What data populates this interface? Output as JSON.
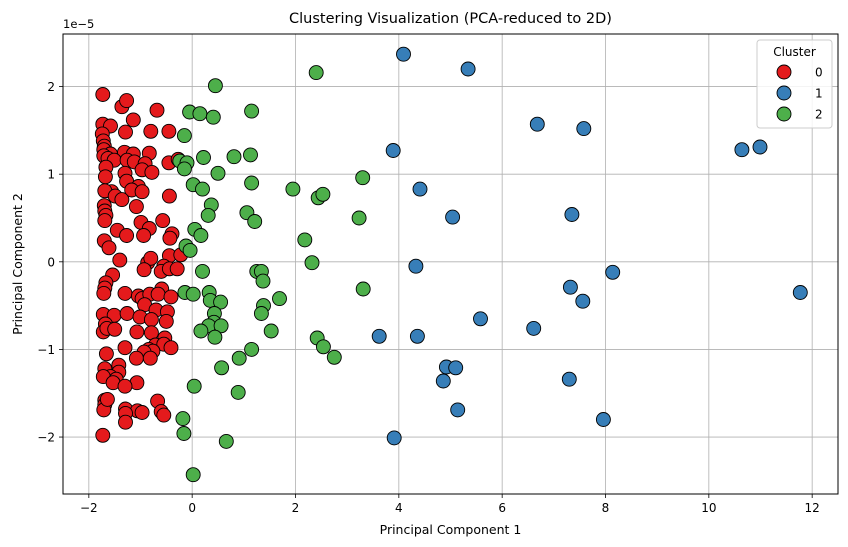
{
  "chart_data": {
    "type": "scatter",
    "title": "Clustering Visualization (PCA-reduced to 2D)",
    "xlabel": "Principal Component 1",
    "ylabel": "Principal Component 2",
    "y_offset_label": "1e−5",
    "y_scale_exponent": -5,
    "xlim": [
      -2.5,
      12.5
    ],
    "ylim": [
      -2.65,
      2.6
    ],
    "x_ticks": [
      -2,
      0,
      2,
      4,
      6,
      8,
      10,
      12
    ],
    "y_ticks": [
      -2,
      -1,
      0,
      1,
      2
    ],
    "grid": true,
    "legend": {
      "title": "Cluster",
      "position": "top-right"
    },
    "series": [
      {
        "name": "0",
        "color": "#e41a1c",
        "points": [
          [
            -1.73,
            1.91
          ],
          [
            -1.36,
            1.77
          ],
          [
            -1.27,
            1.84
          ],
          [
            -0.68,
            1.73
          ],
          [
            -1.14,
            1.62
          ],
          [
            -1.73,
            1.57
          ],
          [
            -1.58,
            1.55
          ],
          [
            -1.29,
            1.48
          ],
          [
            -0.8,
            1.49
          ],
          [
            -0.45,
            1.49
          ],
          [
            -1.74,
            1.46
          ],
          [
            -1.72,
            1.38
          ],
          [
            -1.7,
            1.32
          ],
          [
            -1.71,
            1.28
          ],
          [
            -1.58,
            1.23
          ],
          [
            -1.31,
            1.25
          ],
          [
            -1.14,
            1.23
          ],
          [
            -0.83,
            1.24
          ],
          [
            -1.71,
            1.21
          ],
          [
            -1.63,
            1.18
          ],
          [
            -1.51,
            1.16
          ],
          [
            -1.26,
            1.16
          ],
          [
            -1.12,
            1.14
          ],
          [
            -0.91,
            1.12
          ],
          [
            -0.45,
            1.13
          ],
          [
            -0.27,
            1.17
          ],
          [
            -1.67,
            1.08
          ],
          [
            -1.3,
            1.01
          ],
          [
            -0.97,
            1.05
          ],
          [
            -0.78,
            1.02
          ],
          [
            -1.68,
            0.97
          ],
          [
            -1.27,
            0.92
          ],
          [
            -1.04,
            0.86
          ],
          [
            -1.56,
            0.8
          ],
          [
            -1.17,
            0.82
          ],
          [
            -0.97,
            0.8
          ],
          [
            -1.69,
            0.81
          ],
          [
            -1.49,
            0.75
          ],
          [
            -1.36,
            0.71
          ],
          [
            -0.44,
            0.75
          ],
          [
            -1.7,
            0.64
          ],
          [
            -1.69,
            0.58
          ],
          [
            -1.67,
            0.53
          ],
          [
            -1.08,
            0.63
          ],
          [
            -0.57,
            0.47
          ],
          [
            -1.69,
            0.47
          ],
          [
            -1.45,
            0.36
          ],
          [
            -1.27,
            0.3
          ],
          [
            -0.99,
            0.45
          ],
          [
            -0.83,
            0.38
          ],
          [
            -0.94,
            0.3
          ],
          [
            -0.39,
            0.32
          ],
          [
            -0.43,
            0.27
          ],
          [
            -1.7,
            0.24
          ],
          [
            -1.61,
            0.16
          ],
          [
            -1.54,
            -0.15
          ],
          [
            -1.4,
            0.02
          ],
          [
            -0.86,
            -0.01
          ],
          [
            -0.44,
            0.07
          ],
          [
            -0.22,
            0.08
          ],
          [
            -0.8,
            0.04
          ],
          [
            -0.55,
            -0.05
          ],
          [
            -0.93,
            -0.09
          ],
          [
            -0.6,
            -0.11
          ],
          [
            -0.44,
            -0.08
          ],
          [
            -0.29,
            -0.08
          ],
          [
            -1.67,
            -0.24
          ],
          [
            -1.69,
            -0.3
          ],
          [
            -1.71,
            -0.36
          ],
          [
            -1.3,
            -0.36
          ],
          [
            -1.04,
            -0.39
          ],
          [
            -0.97,
            -0.42
          ],
          [
            -0.82,
            -0.37
          ],
          [
            -0.59,
            -0.31
          ],
          [
            -0.66,
            -0.37
          ],
          [
            -0.41,
            -0.4
          ],
          [
            -0.92,
            -0.49
          ],
          [
            -0.7,
            -0.55
          ],
          [
            -0.48,
            -0.57
          ],
          [
            -1.72,
            -0.6
          ],
          [
            -1.51,
            -0.61
          ],
          [
            -1.26,
            -0.59
          ],
          [
            -1.01,
            -0.63
          ],
          [
            -0.79,
            -0.66
          ],
          [
            -0.5,
            -0.68
          ],
          [
            -1.68,
            -0.71
          ],
          [
            -1.72,
            -0.8
          ],
          [
            -1.65,
            -0.76
          ],
          [
            -1.5,
            -0.77
          ],
          [
            -1.07,
            -0.8
          ],
          [
            -0.79,
            -0.81
          ],
          [
            -0.53,
            -0.87
          ],
          [
            -0.71,
            -0.95
          ],
          [
            -0.55,
            -0.94
          ],
          [
            -0.41,
            -0.98
          ],
          [
            -1.3,
            -0.98
          ],
          [
            -0.84,
            -1.0
          ],
          [
            -0.76,
            -1.02
          ],
          [
            -0.93,
            -1.03
          ],
          [
            -1.66,
            -1.05
          ],
          [
            -1.08,
            -1.1
          ],
          [
            -0.81,
            -1.1
          ],
          [
            -1.69,
            -1.22
          ],
          [
            -1.42,
            -1.18
          ],
          [
            -1.42,
            -1.26
          ],
          [
            -1.58,
            -1.31
          ],
          [
            -1.72,
            -1.31
          ],
          [
            -1.47,
            -1.34
          ],
          [
            -1.53,
            -1.38
          ],
          [
            -1.07,
            -1.38
          ],
          [
            -1.3,
            -1.42
          ],
          [
            -1.69,
            -1.58
          ],
          [
            -1.69,
            -1.63
          ],
          [
            -1.71,
            -1.69
          ],
          [
            -1.64,
            -1.57
          ],
          [
            -1.29,
            -1.68
          ],
          [
            -1.06,
            -1.7
          ],
          [
            -1.29,
            -1.73
          ],
          [
            -0.97,
            -1.72
          ],
          [
            -0.67,
            -1.59
          ],
          [
            -0.6,
            -1.71
          ],
          [
            -0.55,
            -1.75
          ],
          [
            -1.29,
            -1.83
          ],
          [
            -1.73,
            -1.98
          ]
        ]
      },
      {
        "name": "1",
        "color": "#377eb8",
        "points": [
          [
            4.09,
            2.37
          ],
          [
            5.34,
            2.2
          ],
          [
            6.68,
            1.57
          ],
          [
            7.58,
            1.52
          ],
          [
            10.64,
            1.28
          ],
          [
            10.99,
            1.31
          ],
          [
            3.89,
            1.27
          ],
          [
            4.41,
            0.83
          ],
          [
            5.04,
            0.51
          ],
          [
            7.35,
            0.54
          ],
          [
            4.33,
            -0.05
          ],
          [
            8.14,
            -0.12
          ],
          [
            11.77,
            -0.35
          ],
          [
            7.32,
            -0.29
          ],
          [
            7.56,
            -0.45
          ],
          [
            5.58,
            -0.65
          ],
          [
            6.61,
            -0.76
          ],
          [
            3.62,
            -0.85
          ],
          [
            4.36,
            -0.85
          ],
          [
            4.92,
            -1.2
          ],
          [
            5.1,
            -1.21
          ],
          [
            4.86,
            -1.36
          ],
          [
            7.3,
            -1.34
          ],
          [
            5.14,
            -1.69
          ],
          [
            7.96,
            -1.8
          ],
          [
            3.91,
            -2.01
          ]
        ]
      },
      {
        "name": "2",
        "color": "#4daf4a",
        "points": [
          [
            0.45,
            2.01
          ],
          [
            2.4,
            2.16
          ],
          [
            -0.05,
            1.71
          ],
          [
            0.15,
            1.69
          ],
          [
            0.41,
            1.65
          ],
          [
            1.15,
            1.72
          ],
          [
            -0.15,
            1.44
          ],
          [
            0.22,
            1.19
          ],
          [
            0.81,
            1.2
          ],
          [
            1.13,
            1.22
          ],
          [
            -0.24,
            1.15
          ],
          [
            -0.1,
            1.13
          ],
          [
            -0.15,
            1.06
          ],
          [
            0.5,
            1.01
          ],
          [
            3.3,
            0.96
          ],
          [
            0.02,
            0.88
          ],
          [
            1.15,
            0.9
          ],
          [
            0.2,
            0.83
          ],
          [
            1.95,
            0.83
          ],
          [
            2.44,
            0.73
          ],
          [
            2.53,
            0.77
          ],
          [
            0.37,
            0.65
          ],
          [
            0.31,
            0.53
          ],
          [
            1.06,
            0.56
          ],
          [
            1.21,
            0.46
          ],
          [
            3.23,
            0.5
          ],
          [
            0.05,
            0.37
          ],
          [
            0.17,
            0.3
          ],
          [
            2.18,
            0.25
          ],
          [
            -0.12,
            0.18
          ],
          [
            -0.04,
            0.13
          ],
          [
            2.32,
            -0.01
          ],
          [
            0.2,
            -0.11
          ],
          [
            1.25,
            -0.11
          ],
          [
            1.34,
            -0.11
          ],
          [
            1.37,
            -0.22
          ],
          [
            -0.14,
            -0.35
          ],
          [
            0.02,
            -0.37
          ],
          [
            0.33,
            -0.35
          ],
          [
            1.69,
            -0.42
          ],
          [
            0.35,
            -0.44
          ],
          [
            0.55,
            -0.46
          ],
          [
            1.38,
            -0.5
          ],
          [
            1.34,
            -0.59
          ],
          [
            0.43,
            -0.59
          ],
          [
            0.42,
            -0.69
          ],
          [
            0.32,
            -0.73
          ],
          [
            0.56,
            -0.73
          ],
          [
            0.17,
            -0.79
          ],
          [
            1.53,
            -0.79
          ],
          [
            0.44,
            -0.86
          ],
          [
            2.42,
            -0.87
          ],
          [
            2.54,
            -0.97
          ],
          [
            1.15,
            -1.0
          ],
          [
            2.75,
            -1.09
          ],
          [
            0.91,
            -1.1
          ],
          [
            0.57,
            -1.21
          ],
          [
            3.31,
            -0.31
          ],
          [
            0.04,
            -1.42
          ],
          [
            0.89,
            -1.49
          ],
          [
            -0.18,
            -1.79
          ],
          [
            -0.16,
            -1.96
          ],
          [
            0.66,
            -2.05
          ],
          [
            0.02,
            -2.43
          ]
        ]
      }
    ]
  }
}
